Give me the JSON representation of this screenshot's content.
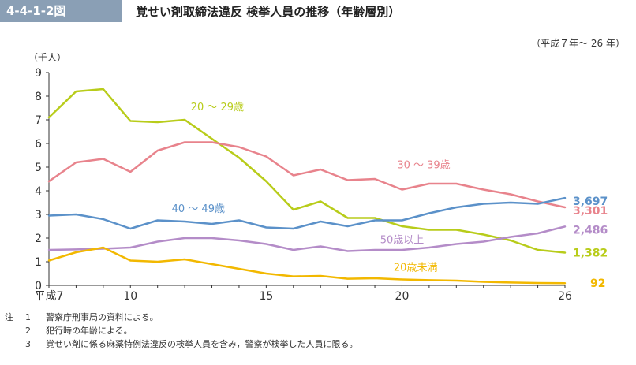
{
  "figure": {
    "number": "4-4-1-2図",
    "title": "覚せい剤取締法違反 検挙人員の推移（年齢層別）",
    "period": "（平成７年～ 26 年）"
  },
  "chart_data": {
    "type": "line",
    "ylabel": "（千人）",
    "ylim": [
      0,
      9
    ],
    "yticks": [
      "0",
      "1",
      "2",
      "3",
      "4",
      "5",
      "6",
      "7",
      "8",
      "9"
    ],
    "xlim": [
      7,
      26
    ],
    "xticks": [
      {
        "x": 7,
        "label": "平成7"
      },
      {
        "x": 10,
        "label": "10"
      },
      {
        "x": 15,
        "label": "15"
      },
      {
        "x": 20,
        "label": "20"
      },
      {
        "x": 26,
        "label": "26"
      }
    ],
    "x": [
      7,
      8,
      9,
      10,
      11,
      12,
      13,
      14,
      15,
      16,
      17,
      18,
      19,
      20,
      21,
      22,
      23,
      24,
      25,
      26
    ],
    "series": [
      {
        "name": "20 ～ 29歳",
        "color": "#b8cc1a",
        "end_label": "1,382",
        "values": [
          7.1,
          8.2,
          8.3,
          6.95,
          6.9,
          7.0,
          6.2,
          5.4,
          4.4,
          3.2,
          3.55,
          2.85,
          2.85,
          2.5,
          2.35,
          2.35,
          2.15,
          1.9,
          1.5,
          1.382
        ]
      },
      {
        "name": "30 ～ 39歳",
        "color": "#e8838c",
        "end_label": "3,301",
        "values": [
          4.4,
          5.2,
          5.35,
          4.8,
          5.7,
          6.05,
          6.05,
          5.85,
          5.45,
          4.65,
          4.9,
          4.45,
          4.5,
          4.05,
          4.3,
          4.3,
          4.05,
          3.85,
          3.55,
          3.301
        ]
      },
      {
        "name": "40 ～ 49歳",
        "color": "#5b91c9",
        "end_label": "3,697",
        "values": [
          2.95,
          3.0,
          2.8,
          2.4,
          2.75,
          2.7,
          2.6,
          2.75,
          2.45,
          2.4,
          2.7,
          2.5,
          2.75,
          2.75,
          3.05,
          3.3,
          3.45,
          3.5,
          3.45,
          3.697
        ]
      },
      {
        "name": "50歳以上",
        "color": "#b48cc8",
        "end_label": "2,486",
        "values": [
          1.5,
          1.52,
          1.55,
          1.6,
          1.85,
          2.0,
          2.0,
          1.9,
          1.75,
          1.5,
          1.65,
          1.45,
          1.5,
          1.5,
          1.6,
          1.75,
          1.85,
          2.05,
          2.2,
          2.486
        ]
      },
      {
        "name": "20歳未満",
        "color": "#f2b800",
        "end_label": "92",
        "values": [
          1.05,
          1.4,
          1.6,
          1.05,
          1.0,
          1.1,
          0.9,
          0.7,
          0.5,
          0.38,
          0.4,
          0.28,
          0.3,
          0.25,
          0.22,
          0.2,
          0.15,
          0.12,
          0.1,
          0.092
        ]
      }
    ]
  },
  "notes": {
    "head": "注",
    "items": [
      {
        "num": "1",
        "text": "警察庁刑事局の資料による。"
      },
      {
        "num": "2",
        "text": "犯行時の年齢による。"
      },
      {
        "num": "3",
        "text": "覚せい剤に係る麻薬特例法違反の検挙人員を含み，警察が検挙した人員に限る。"
      }
    ]
  }
}
